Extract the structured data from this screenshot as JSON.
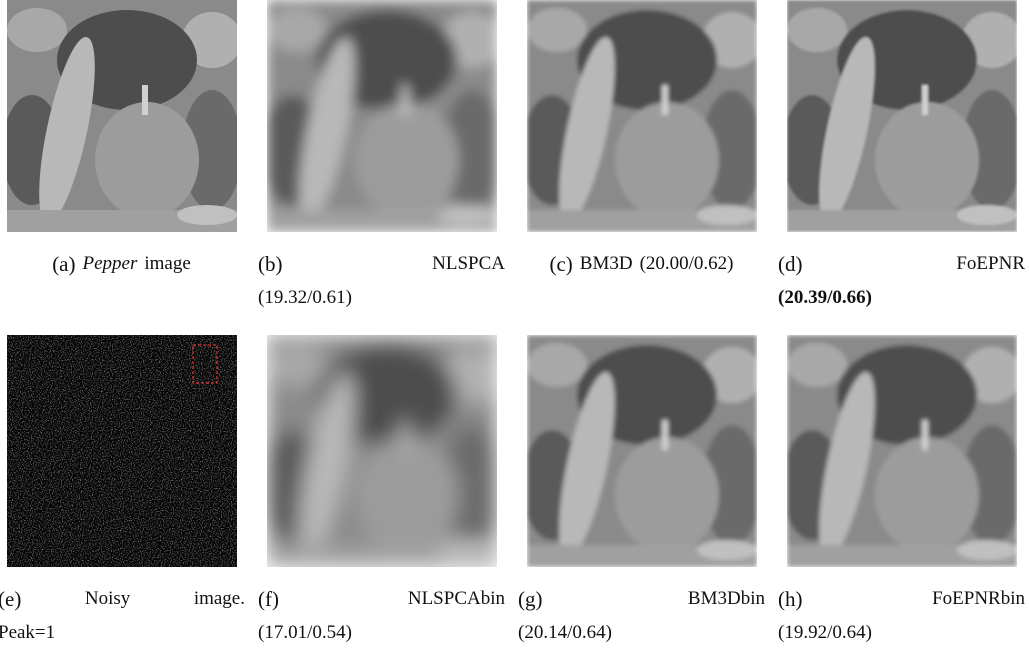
{
  "figures": [
    {
      "label": "(a)",
      "line1": [
        "Pepper",
        "image"
      ]
    },
    {
      "label": "(b)",
      "line1": [
        "NLSPCA"
      ],
      "line2": "(19.32/0.61)"
    },
    {
      "label": "(c)",
      "line1": [
        "BM3D",
        "(20.00/0.62)"
      ]
    },
    {
      "label": "(d)",
      "line1": [
        "FoEPNR"
      ],
      "line2": "(20.39/0.66)"
    },
    {
      "label": "(e)",
      "line1": [
        "Noisy",
        "image."
      ],
      "line2": "Peak=1"
    },
    {
      "label": "(f)",
      "line1": [
        "NLSPCAbin"
      ],
      "line2": "(17.01/0.54)"
    },
    {
      "label": "(g)",
      "line1": [
        "BM3Dbin"
      ],
      "line2": "(20.14/0.64)"
    },
    {
      "label": "(h)",
      "line1": [
        "FoEPNRbin"
      ],
      "line2": "(19.92/0.64)"
    }
  ]
}
